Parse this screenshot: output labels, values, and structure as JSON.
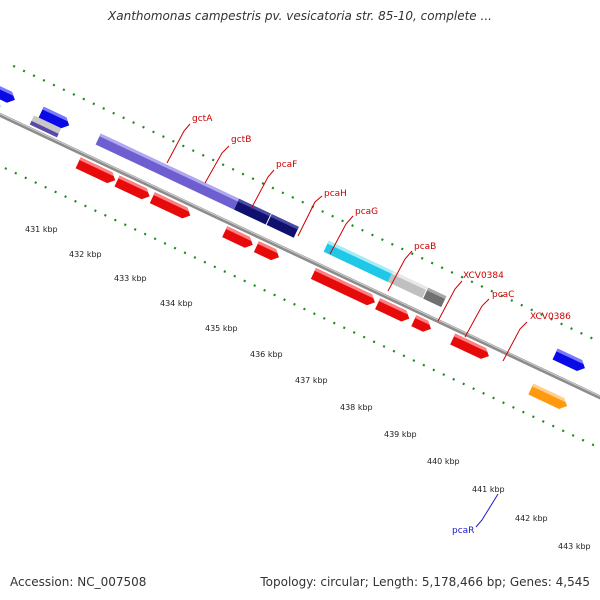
{
  "title": "Xanthomonas campestris pv. vesicatoria str. 85-10, complete ...",
  "accession": "Accession: NC_007508",
  "summary": "Topology: circular; Length: 5,178,466 bp; Genes: 4,545",
  "colors": {
    "backbone": "#8c8c8c",
    "tick_dotted": "#1d8a1d",
    "gene_label_red": "#cc0000",
    "gene_label_blue": "#1a1acc",
    "forward_blue": "#0a0ae6",
    "lavender": "#6e5fd0",
    "navy": "#10106e",
    "cyan": "#20c8e8",
    "gray_light": "#c0c0c0",
    "gray_dark": "#707070",
    "red": "#e60a0a",
    "orange": "#ff9a10"
  },
  "kbp_labels": [
    "431 kbp",
    "432 kbp",
    "433 kbp",
    "434 kbp",
    "435 kbp",
    "436 kbp",
    "437 kbp",
    "438 kbp",
    "439 kbp",
    "440 kbp",
    "441 kbp",
    "442 kbp",
    "443 kbp"
  ],
  "gene_labels": [
    {
      "name": "gctA",
      "strand": "forward"
    },
    {
      "name": "gctB",
      "strand": "forward"
    },
    {
      "name": "pcaF",
      "strand": "forward"
    },
    {
      "name": "pcaH",
      "strand": "forward"
    },
    {
      "name": "pcaG",
      "strand": "forward"
    },
    {
      "name": "pcaB",
      "strand": "forward"
    },
    {
      "name": "XCV0384",
      "strand": "forward"
    },
    {
      "name": "pcaC",
      "strand": "forward"
    },
    {
      "name": "XCV0386",
      "strand": "forward"
    },
    {
      "name": "pcaR",
      "strand": "reverse"
    }
  ]
}
